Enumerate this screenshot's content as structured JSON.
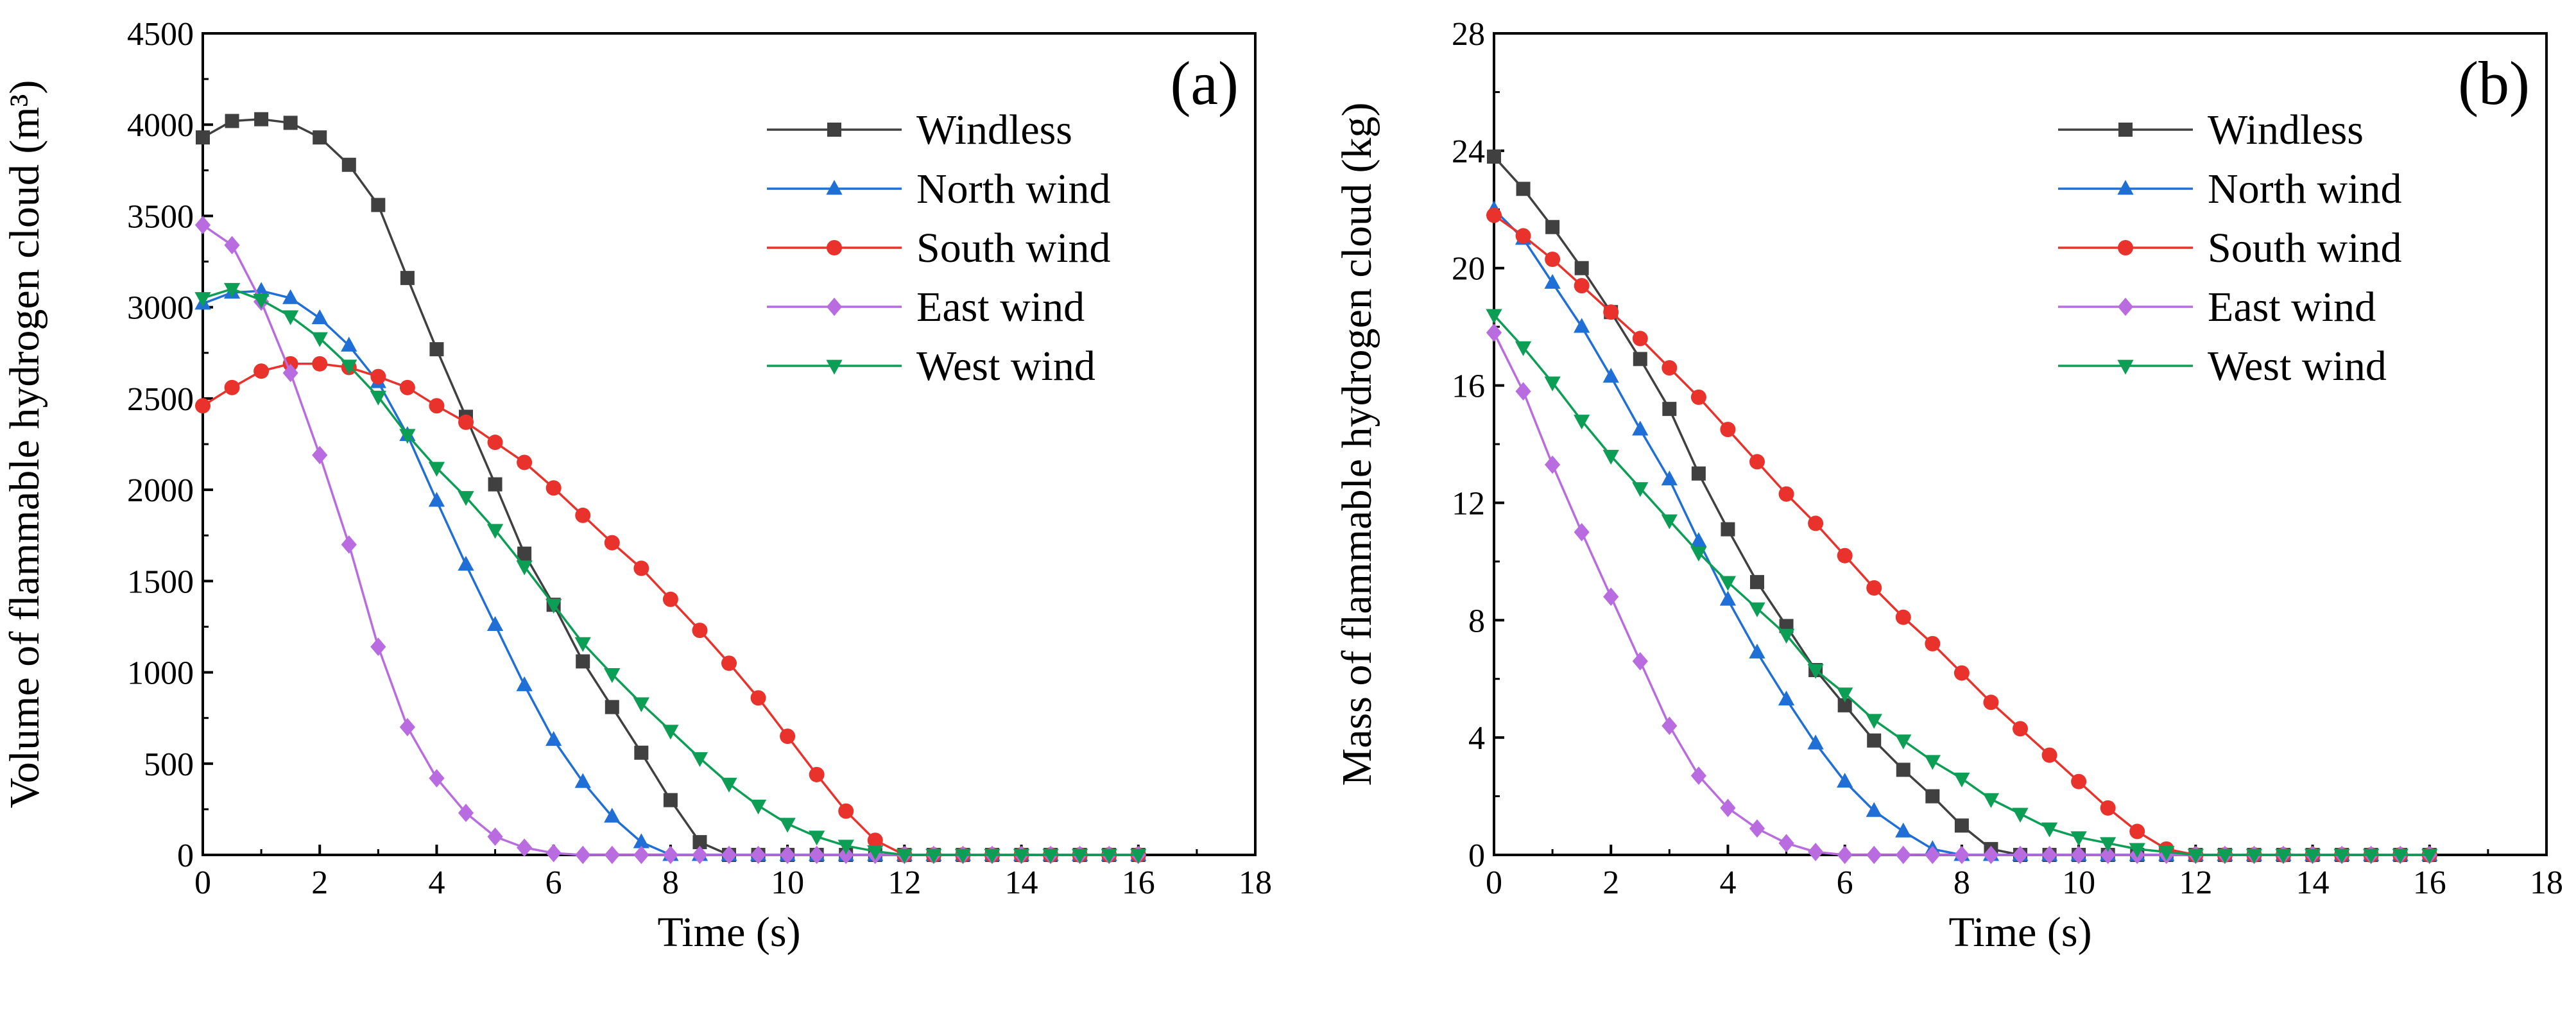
{
  "chart_data": [
    {
      "type": "line",
      "panel_label": "(a)",
      "xlabel": "Time (s)",
      "ylabel": "Volume of flammable hydrogen cloud (m³)",
      "xlim": [
        0,
        18
      ],
      "ylim": [
        0,
        4500
      ],
      "xticks": [
        "0",
        "2",
        "4",
        "6",
        "8",
        "10",
        "12",
        "14",
        "16",
        "18"
      ],
      "yticks": [
        "0",
        "500",
        "1000",
        "1500",
        "2000",
        "2500",
        "3000",
        "3500",
        "4000",
        "4500"
      ],
      "grid": false,
      "legend_placement": "top-right",
      "reference_line": 0,
      "x": [
        0,
        0.5,
        1,
        1.5,
        2,
        2.5,
        3,
        3.5,
        4,
        4.5,
        5,
        5.5,
        6,
        6.5,
        7,
        7.5,
        8,
        8.5,
        9,
        9.5,
        10,
        10.5,
        11,
        11.5,
        12,
        12.5,
        13,
        13.5,
        14,
        14.5,
        15,
        15.5,
        16
      ],
      "series": [
        {
          "name": "Windless",
          "color": "#404040",
          "marker": "square",
          "values": [
            3930,
            4020,
            4030,
            4010,
            3930,
            3780,
            3560,
            3160,
            2770,
            2400,
            2030,
            1650,
            1370,
            1060,
            810,
            560,
            300,
            70,
            0,
            0,
            0,
            0,
            0,
            0,
            0,
            0,
            0,
            0,
            0,
            0,
            0,
            0,
            0
          ]
        },
        {
          "name": "North wind",
          "color": "#1f6fd6",
          "marker": "triangle-up",
          "values": [
            3020,
            3080,
            3090,
            3050,
            2940,
            2790,
            2590,
            2300,
            1940,
            1590,
            1260,
            930,
            630,
            400,
            210,
            70,
            0,
            0,
            0,
            0,
            0,
            0,
            0,
            0,
            0,
            0,
            0,
            0,
            0,
            0,
            0,
            0,
            0
          ]
        },
        {
          "name": "South wind",
          "color": "#e8322b",
          "marker": "circle",
          "values": [
            2460,
            2560,
            2650,
            2690,
            2690,
            2670,
            2620,
            2560,
            2460,
            2370,
            2260,
            2150,
            2010,
            1860,
            1710,
            1570,
            1400,
            1230,
            1050,
            860,
            650,
            440,
            240,
            80,
            0,
            0,
            0,
            0,
            0,
            0,
            0,
            0,
            0
          ]
        },
        {
          "name": "East wind",
          "color": "#b96be0",
          "marker": "diamond",
          "values": [
            3450,
            3340,
            3030,
            2640,
            2190,
            1700,
            1140,
            700,
            420,
            230,
            100,
            40,
            10,
            0,
            0,
            0,
            0,
            0,
            0,
            0,
            0,
            0,
            0,
            0,
            0,
            0,
            0,
            0,
            0,
            0,
            0,
            0,
            0
          ]
        },
        {
          "name": "West wind",
          "color": "#0c9e55",
          "marker": "triangle-down",
          "values": [
            3050,
            3100,
            3040,
            2950,
            2830,
            2680,
            2510,
            2300,
            2120,
            1960,
            1780,
            1580,
            1370,
            1160,
            990,
            830,
            680,
            530,
            390,
            270,
            170,
            100,
            50,
            20,
            0,
            0,
            0,
            0,
            0,
            0,
            0,
            0,
            0
          ]
        }
      ]
    },
    {
      "type": "line",
      "panel_label": "(b)",
      "xlabel": "Time (s)",
      "ylabel": "Mass of flammable hydrogen cloud (kg)",
      "xlim": [
        0,
        18
      ],
      "ylim": [
        0,
        28
      ],
      "xticks": [
        "0",
        "2",
        "4",
        "6",
        "8",
        "10",
        "12",
        "14",
        "16",
        "18"
      ],
      "yticks": [
        "0",
        "4",
        "8",
        "12",
        "16",
        "20",
        "24",
        "28"
      ],
      "grid": false,
      "legend_placement": "top-right",
      "reference_line": 0,
      "x": [
        0,
        0.5,
        1,
        1.5,
        2,
        2.5,
        3,
        3.5,
        4,
        4.5,
        5,
        5.5,
        6,
        6.5,
        7,
        7.5,
        8,
        8.5,
        9,
        9.5,
        10,
        10.5,
        11,
        11.5,
        12,
        12.5,
        13,
        13.5,
        14,
        14.5,
        15,
        15.5,
        16
      ],
      "series": [
        {
          "name": "Windless",
          "color": "#404040",
          "marker": "square",
          "values": [
            23.8,
            22.7,
            21.4,
            20.0,
            18.5,
            16.9,
            15.2,
            13.0,
            11.1,
            9.3,
            7.8,
            6.3,
            5.1,
            3.9,
            2.9,
            2.0,
            1.0,
            0.2,
            0,
            0,
            0,
            0,
            0,
            0,
            0,
            0,
            0,
            0,
            0,
            0,
            0,
            0,
            0
          ]
        },
        {
          "name": "North wind",
          "color": "#1f6fd6",
          "marker": "triangle-up",
          "values": [
            22.0,
            21.0,
            19.5,
            18.0,
            16.3,
            14.5,
            12.8,
            10.7,
            8.7,
            6.9,
            5.3,
            3.8,
            2.5,
            1.5,
            0.8,
            0.2,
            0,
            0,
            0,
            0,
            0,
            0,
            0,
            0,
            0,
            0,
            0,
            0,
            0,
            0,
            0,
            0,
            0
          ]
        },
        {
          "name": "South wind",
          "color": "#e8322b",
          "marker": "circle",
          "values": [
            21.8,
            21.1,
            20.3,
            19.4,
            18.5,
            17.6,
            16.6,
            15.6,
            14.5,
            13.4,
            12.3,
            11.3,
            10.2,
            9.1,
            8.1,
            7.2,
            6.2,
            5.2,
            4.3,
            3.4,
            2.5,
            1.6,
            0.8,
            0.2,
            0,
            0,
            0,
            0,
            0,
            0,
            0,
            0,
            0
          ]
        },
        {
          "name": "East wind",
          "color": "#b96be0",
          "marker": "diamond",
          "values": [
            17.8,
            15.8,
            13.3,
            11.0,
            8.8,
            6.6,
            4.4,
            2.7,
            1.6,
            0.9,
            0.4,
            0.1,
            0,
            0,
            0,
            0,
            0,
            0,
            0,
            0,
            0,
            0,
            0,
            0,
            0,
            0,
            0,
            0,
            0,
            0,
            0,
            0,
            0
          ]
        },
        {
          "name": "West wind",
          "color": "#0c9e55",
          "marker": "triangle-down",
          "values": [
            18.4,
            17.3,
            16.1,
            14.8,
            13.6,
            12.5,
            11.4,
            10.3,
            9.3,
            8.4,
            7.5,
            6.3,
            5.5,
            4.6,
            3.9,
            3.2,
            2.6,
            1.9,
            1.4,
            0.9,
            0.6,
            0.4,
            0.2,
            0.1,
            0,
            0,
            0,
            0,
            0,
            0,
            0,
            0,
            0
          ]
        }
      ]
    }
  ]
}
